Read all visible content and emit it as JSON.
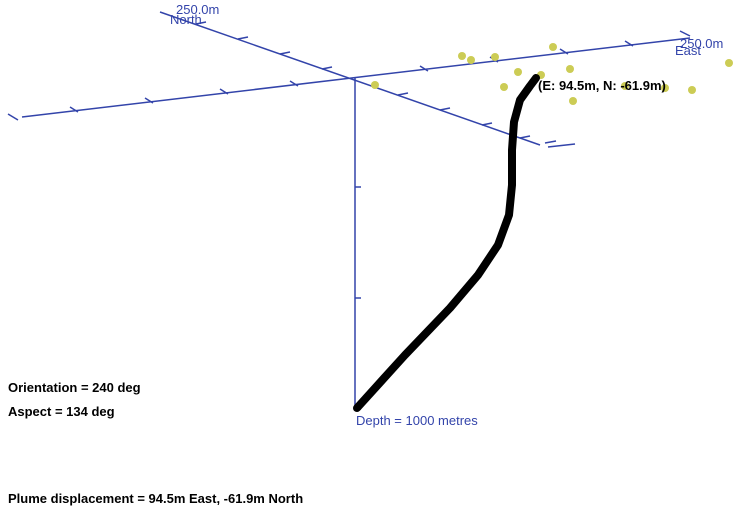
{
  "axes": {
    "north_label": "North",
    "north_extent_label": "250.0m",
    "east_label": "East",
    "east_extent_label": "250.0m",
    "depth_label": "Depth = 1000 metres",
    "color": "#3344aa"
  },
  "plume": {
    "endpoint_label": "(E: 94.5m,  N: -61.9m)",
    "color": "#000000"
  },
  "view": {
    "orientation_text": "Orientation = 240 deg",
    "aspect_text": "Aspect = 134 deg"
  },
  "summary": {
    "displacement_text": "Plume displacement = 94.5m East,  -61.9m North"
  },
  "markers": {
    "color": "#cccc55",
    "count": 14
  }
}
